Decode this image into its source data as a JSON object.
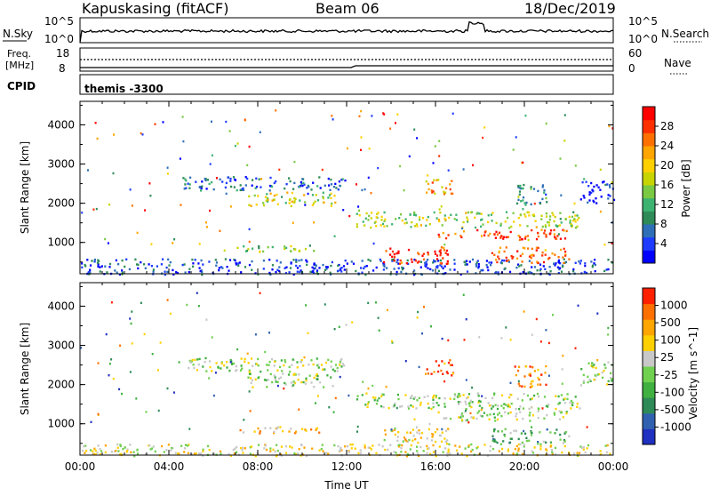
{
  "header": {
    "station": "Kapuskasing (fitACF)",
    "beam": "Beam 06",
    "date": "18/Dec/2019"
  },
  "top_panel": {
    "left_label": "N.Sky",
    "right_label": "N.Search",
    "left_ticks": [
      "10^5",
      "10^0"
    ],
    "right_ticks": [
      "10^5",
      "10^0"
    ]
  },
  "freq_panel": {
    "left_label_line1": "Freq.",
    "left_label_line2": "[MHz]",
    "right_label": "Nave",
    "left_ticks": [
      "18",
      "8"
    ],
    "right_ticks": [
      "60",
      "0"
    ]
  },
  "cpid": {
    "label": "CPID",
    "value": "themis -3300"
  },
  "chart_data": [
    {
      "type": "heatmap",
      "name": "power",
      "ylabel": "Slant Range [km]",
      "xlabel": "",
      "yticks": [
        "1000",
        "2000",
        "3000",
        "4000"
      ],
      "ylim": [
        200,
        4600
      ],
      "xlim_hours": [
        0,
        24
      ],
      "colorbar": {
        "label": "Power [dB]",
        "ticks": [
          "4",
          "8",
          "12",
          "16",
          "20",
          "24",
          "28"
        ],
        "colors": [
          "#0000ff",
          "#1e3cff",
          "#2f6fb8",
          "#2e8b57",
          "#3cb371",
          "#7ac943",
          "#c8d400",
          "#ffd000",
          "#ffa500",
          "#ff7000",
          "#ff3000",
          "#ff0000"
        ]
      },
      "regions": [
        {
          "t0": 0.0,
          "t1": 24.0,
          "r0": 200,
          "r1": 600,
          "level": 0.15
        },
        {
          "t0": 4.6,
          "t1": 12.0,
          "r0": 2350,
          "r1": 2700,
          "level": 0.2
        },
        {
          "t0": 7.5,
          "t1": 11.5,
          "r0": 1950,
          "r1": 2300,
          "level": 0.55
        },
        {
          "t0": 7.0,
          "t1": 11.0,
          "r0": 780,
          "r1": 950,
          "level": 0.45
        },
        {
          "t0": 12.4,
          "t1": 22.5,
          "r0": 1400,
          "r1": 1800,
          "level": 0.5
        },
        {
          "t0": 16.0,
          "t1": 22.0,
          "r0": 1100,
          "r1": 1350,
          "level": 0.85
        },
        {
          "t0": 13.6,
          "t1": 16.6,
          "r0": 480,
          "r1": 900,
          "level": 0.9
        },
        {
          "t0": 18.5,
          "t1": 22.0,
          "r0": 500,
          "r1": 900,
          "level": 0.8
        },
        {
          "t0": 15.5,
          "t1": 16.8,
          "r0": 2250,
          "r1": 2650,
          "level": 0.7
        },
        {
          "t0": 19.5,
          "t1": 21.0,
          "r0": 1950,
          "r1": 2500,
          "level": 0.3
        },
        {
          "t0": 22.5,
          "t1": 24.0,
          "r0": 2000,
          "r1": 2600,
          "level": 0.1
        }
      ]
    },
    {
      "type": "heatmap",
      "name": "velocity",
      "ylabel": "Slant Range [km]",
      "xlabel": "Time UT",
      "yticks": [
        "1000",
        "2000",
        "3000",
        "4000"
      ],
      "ylim": [
        200,
        4600
      ],
      "xlim_hours": [
        0,
        24
      ],
      "xticks": [
        "00:00",
        "04:00",
        "08:00",
        "12:00",
        "16:00",
        "20:00",
        "00:00"
      ],
      "colorbar": {
        "label": "Velocity [m s^-1]",
        "ticks": [
          "1000",
          "500",
          "100",
          "25",
          "-25",
          "-100",
          "-500",
          "-1000"
        ],
        "colors": [
          "#2030c0",
          "#3060b0",
          "#2e8b57",
          "#40b040",
          "#70d050",
          "#c8c8c8",
          "#ffd000",
          "#ffa500",
          "#ff7000",
          "#ff2000"
        ]
      },
      "regions": [
        {
          "t0": 0.0,
          "t1": 24.0,
          "r0": 200,
          "r1": 500,
          "level": 0.6
        },
        {
          "t0": 4.6,
          "t1": 12.0,
          "r0": 2350,
          "r1": 2700,
          "level": 0.5
        },
        {
          "t0": 7.5,
          "t1": 11.5,
          "r0": 1950,
          "r1": 2300,
          "level": 0.5
        },
        {
          "t0": 7.0,
          "t1": 11.0,
          "r0": 780,
          "r1": 950,
          "level": 0.7
        },
        {
          "t0": 12.4,
          "t1": 22.5,
          "r0": 1400,
          "r1": 1800,
          "level": 0.5
        },
        {
          "t0": 16.0,
          "t1": 22.0,
          "r0": 1100,
          "r1": 1350,
          "level": 0.5
        },
        {
          "t0": 13.6,
          "t1": 16.6,
          "r0": 480,
          "r1": 900,
          "level": 0.65
        },
        {
          "t0": 18.5,
          "t1": 22.0,
          "r0": 500,
          "r1": 900,
          "level": 0.35
        },
        {
          "t0": 15.5,
          "t1": 16.8,
          "r0": 2250,
          "r1": 2650,
          "level": 0.85
        },
        {
          "t0": 19.5,
          "t1": 21.0,
          "r0": 1950,
          "r1": 2500,
          "level": 0.8
        },
        {
          "t0": 22.5,
          "t1": 24.0,
          "r0": 2000,
          "r1": 2600,
          "level": 0.5
        }
      ]
    }
  ]
}
